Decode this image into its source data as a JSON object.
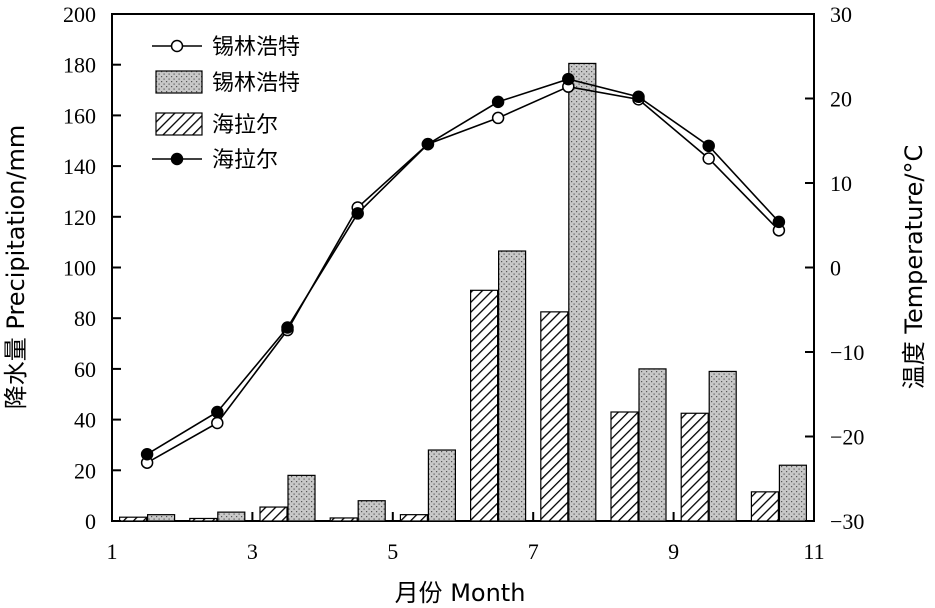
{
  "chart_data": {
    "type": "bar+line",
    "x_axis": {
      "label": "月份  Month",
      "range": [
        1,
        11
      ],
      "ticks": [
        1,
        3,
        5,
        7,
        9,
        11
      ]
    },
    "y_left": {
      "label": "降水量 Precipitation/mm",
      "range": [
        0,
        200
      ],
      "ticks": [
        0,
        20,
        40,
        60,
        80,
        100,
        120,
        140,
        160,
        180,
        200
      ]
    },
    "y_right": {
      "label": "温度 Temperature/°C",
      "range": [
        -30,
        30
      ],
      "ticks": [
        -30,
        -20,
        -10,
        0,
        10,
        20,
        30
      ]
    },
    "months": [
      1,
      2,
      3,
      4,
      5,
      6,
      7,
      8,
      9,
      10
    ],
    "legend": {
      "placement": "top-left",
      "items": [
        {
          "label": "锡林浩特",
          "kind": "line-open-circle"
        },
        {
          "label": "锡林浩特",
          "kind": "bar-dotted"
        },
        {
          "label": "海拉尔",
          "kind": "bar-hatched"
        },
        {
          "label": "海拉尔",
          "kind": "line-filled-circle"
        }
      ]
    },
    "series": [
      {
        "name": "海拉尔",
        "kind": "bar",
        "pattern": "hatched",
        "axis": "left",
        "values": [
          1.5,
          1,
          5.5,
          1.2,
          2.5,
          91,
          82.5,
          43,
          42.5,
          11.5
        ]
      },
      {
        "name": "锡林浩特",
        "kind": "bar",
        "pattern": "dotted",
        "axis": "left",
        "values": [
          2.5,
          3.5,
          18,
          8,
          28,
          106.5,
          180.5,
          60,
          59,
          22
        ]
      },
      {
        "name": "锡林浩特",
        "kind": "line",
        "marker": "open-circle",
        "axis": "right",
        "values": [
          -23.1,
          -18.4,
          -7.4,
          7.1,
          14.6,
          17.7,
          21.4,
          19.9,
          12.9,
          4.4
        ]
      },
      {
        "name": "海拉尔",
        "kind": "line",
        "marker": "filled-circle",
        "axis": "right",
        "values": [
          -22.1,
          -17.1,
          -7.1,
          6.4,
          14.6,
          19.6,
          22.3,
          20.2,
          14.4,
          5.4
        ]
      }
    ]
  }
}
